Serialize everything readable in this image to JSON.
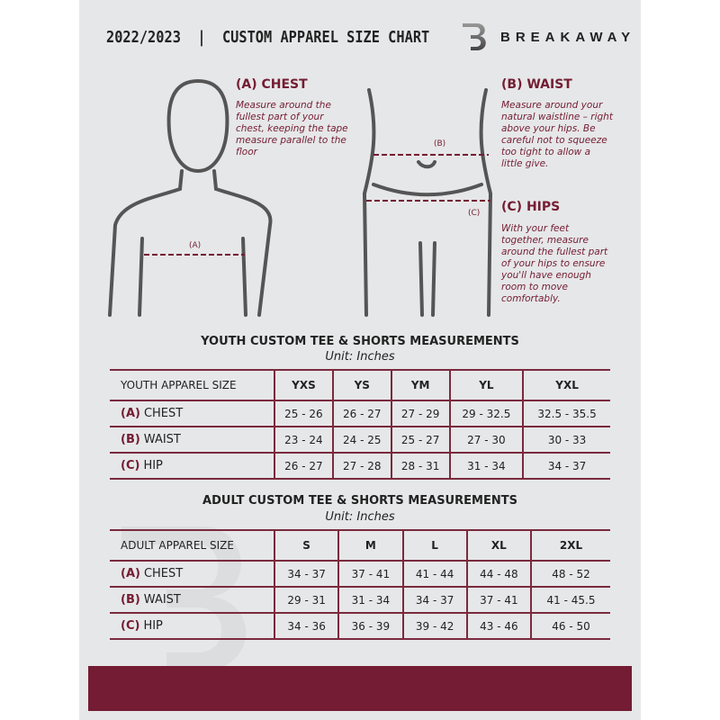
{
  "header": {
    "title": "2022/2023  |  CUSTOM APPAREL SIZE CHART",
    "brand": "BREAKAWAY",
    "logo_letter": "B"
  },
  "chest": {
    "heading": "(A) CHEST",
    "desc": "Measure around the fullest part of your chest, keeping the tape measure parallel to the floor",
    "marker": "(A)"
  },
  "waist": {
    "heading": "(B) WAIST",
    "desc": "Measure around your natural waistline – right above your hips. Be careful not to squeeze too tight to allow a little give.",
    "marker": "(B)"
  },
  "hips": {
    "heading": "(C) HIPS",
    "desc": "With your feet together, measure around the fullest part of your hips to ensure you'll have enough room to move comfortably.",
    "marker": "(C)"
  },
  "accent_color": "#741c33",
  "youth": {
    "title": "YOUTH CUSTOM TEE & SHORTS MEASUREMENTS",
    "unit": "Unit: Inches",
    "header": [
      "YOUTH APPAREL SIZE",
      "YXS",
      "YS",
      "YM",
      "YL",
      "YXL"
    ],
    "rows": [
      {
        "letter": "(A)",
        "label": "CHEST",
        "values": [
          "25 - 26",
          "26 - 27",
          "27 - 29",
          "29 - 32.5",
          "32.5 - 35.5"
        ]
      },
      {
        "letter": "(B)",
        "label": "WAIST",
        "values": [
          "23 - 24",
          "24 - 25",
          "25 - 27",
          "27 - 30",
          "30 - 33"
        ]
      },
      {
        "letter": "(C)",
        "label": "HIP",
        "values": [
          "26 - 27",
          "27 - 28",
          "28 - 31",
          "31 - 34",
          "34 - 37"
        ]
      }
    ]
  },
  "adult": {
    "title": "ADULT CUSTOM TEE & SHORTS MEASUREMENTS",
    "unit": "Unit: Inches",
    "header": [
      "ADULT APPAREL SIZE",
      "S",
      "M",
      "L",
      "XL",
      "2XL"
    ],
    "rows": [
      {
        "letter": "(A)",
        "label": "CHEST",
        "values": [
          "34 - 37",
          "37 - 41",
          "41 - 44",
          "44 - 48",
          "48 - 52"
        ]
      },
      {
        "letter": "(B)",
        "label": "WAIST",
        "values": [
          "29 - 31",
          "31 - 34",
          "34 - 37",
          "37 - 41",
          "41 - 45.5"
        ]
      },
      {
        "letter": "(C)",
        "label": "HIP",
        "values": [
          "34 - 36",
          "36 - 39",
          "39 - 42",
          "43 - 46",
          "46 - 50"
        ]
      }
    ]
  }
}
